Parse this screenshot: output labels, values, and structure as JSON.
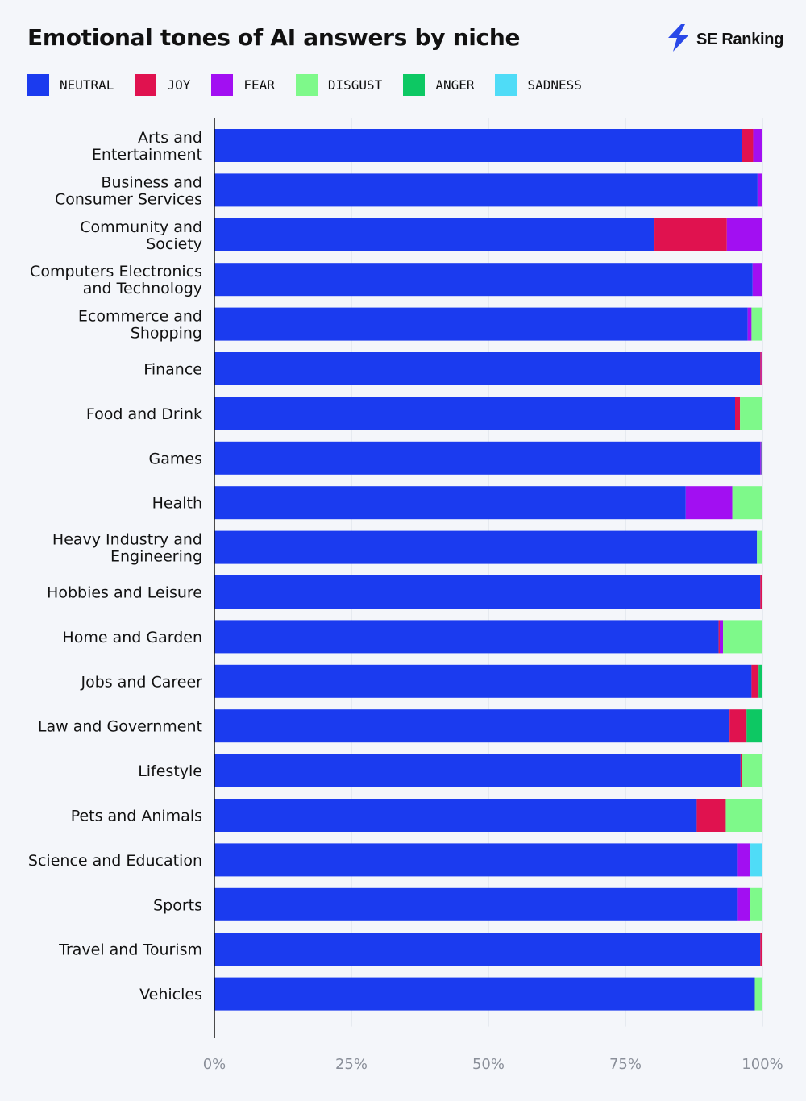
{
  "title": "Emotional tones of AI answers by niche",
  "brand": {
    "name": "SE Ranking",
    "icon": "lightning-bolt-icon",
    "color": "#2948e8"
  },
  "chart_data": {
    "type": "bar",
    "orientation": "horizontal",
    "stacked": true,
    "title": "Emotional tones of AI answers by niche",
    "xlabel": "",
    "ylabel": "",
    "xlim": [
      0,
      100
    ],
    "x_ticks": [
      "0%",
      "25%",
      "50%",
      "75%",
      "100%"
    ],
    "grid": true,
    "legend_position": "top-left",
    "categories": [
      [
        "Arts and",
        "Entertainment"
      ],
      [
        "Business and",
        "Consumer Services"
      ],
      [
        "Community and",
        "Society"
      ],
      [
        "Computers Electronics",
        "and Technology"
      ],
      [
        "Ecommerce and",
        "Shopping"
      ],
      [
        "Finance"
      ],
      [
        "Food and Drink"
      ],
      [
        "Games"
      ],
      [
        "Health"
      ],
      [
        "Heavy Industry and",
        "Engineering"
      ],
      [
        "Hobbies and Leisure"
      ],
      [
        "Home and Garden"
      ],
      [
        "Jobs and Career"
      ],
      [
        "Law and Government"
      ],
      [
        "Lifestyle"
      ],
      [
        "Pets and Animals"
      ],
      [
        "Science and Education"
      ],
      [
        "Sports"
      ],
      [
        "Travel and Tourism"
      ],
      [
        "Vehicles"
      ]
    ],
    "series": [
      {
        "name": "NEUTRAL",
        "color": "#1b3bef",
        "values": [
          96.3,
          99.1,
          80.3,
          98.2,
          97.3,
          99.6,
          95.0,
          99.6,
          86.0,
          99.0,
          99.6,
          92.0,
          98.0,
          94.0,
          96.0,
          88.0,
          95.5,
          95.5,
          99.6,
          98.6
        ]
      },
      {
        "name": "JOY",
        "color": "#e0124f",
        "values": [
          2.0,
          0.0,
          13.2,
          0.0,
          0.0,
          0.2,
          0.9,
          0.0,
          0.0,
          0.0,
          0.3,
          0.2,
          1.3,
          3.1,
          0.2,
          5.3,
          0.0,
          0.0,
          0.4,
          0.0
        ]
      },
      {
        "name": "FEAR",
        "color": "#a20ff2",
        "values": [
          1.7,
          0.9,
          6.5,
          1.8,
          0.7,
          0.2,
          0.0,
          0.2,
          8.5,
          0.0,
          0.0,
          0.6,
          0.0,
          0.0,
          0.0,
          0.0,
          2.3,
          2.3,
          0.0,
          0.0
        ]
      },
      {
        "name": "DISGUST",
        "color": "#7ef98a",
        "values": [
          0.0,
          0.0,
          0.0,
          0.0,
          2.0,
          0.0,
          4.1,
          0.0,
          5.5,
          1.0,
          0.0,
          7.2,
          0.0,
          0.0,
          3.8,
          6.7,
          0.0,
          2.2,
          0.0,
          1.4
        ]
      },
      {
        "name": "ANGER",
        "color": "#0dc863",
        "values": [
          0.0,
          0.0,
          0.0,
          0.0,
          0.0,
          0.0,
          0.0,
          0.2,
          0.0,
          0.0,
          0.1,
          0.0,
          0.7,
          2.9,
          0.0,
          0.0,
          0.0,
          0.0,
          0.0,
          0.0
        ]
      },
      {
        "name": "SADNESS",
        "color": "#4fdcf7",
        "values": [
          0.0,
          0.0,
          0.0,
          0.0,
          0.0,
          0.0,
          0.0,
          0.0,
          0.0,
          0.0,
          0.0,
          0.0,
          0.0,
          0.0,
          0.0,
          0.0,
          2.2,
          0.0,
          0.0,
          0.0
        ]
      }
    ]
  }
}
